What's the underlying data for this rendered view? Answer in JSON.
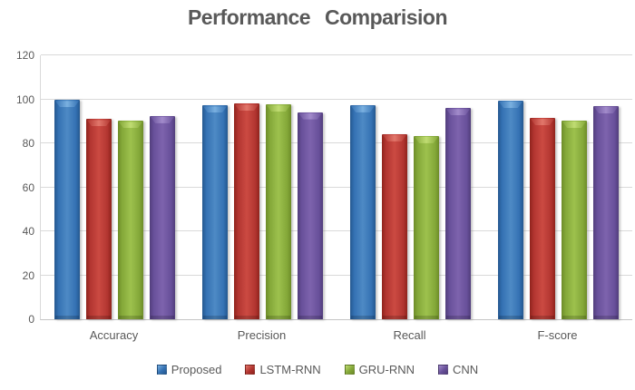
{
  "title": "Performance Comparision",
  "chart_data": {
    "type": "bar",
    "title": "Performance Comparision",
    "categories": [
      "Accuracy",
      "Precision",
      "Recall",
      "F-score"
    ],
    "series": [
      {
        "name": "Proposed",
        "color": "#3471b3",
        "fill": {
          "dark": "#24578f",
          "mid": "#3471b3",
          "light": "#4e8ac5",
          "top": "#7ab0e0"
        },
        "values": [
          99.7,
          97.2,
          97.4,
          99.4
        ]
      },
      {
        "name": "LSTM-RNN",
        "color": "#b23530",
        "fill": {
          "dark": "#8f231c",
          "mid": "#b23530",
          "light": "#cb4a42",
          "top": "#e2776b"
        },
        "values": [
          91.0,
          98.0,
          84.2,
          91.5
        ]
      },
      {
        "name": "GRU-RNN",
        "color": "#84a839",
        "fill": {
          "dark": "#6d8c28",
          "mid": "#84a839",
          "light": "#9dc14d",
          "top": "#c0dc72"
        },
        "values": [
          90.2,
          97.7,
          83.4,
          90.3
        ]
      },
      {
        "name": "CNN",
        "color": "#68509a",
        "fill": {
          "dark": "#523e7c",
          "mid": "#68509a",
          "light": "#7d63ad",
          "top": "#a28bcb"
        },
        "values": [
          92.4,
          94.2,
          96.0,
          96.9
        ]
      }
    ],
    "xlabel": "",
    "ylabel": "",
    "ylim": [
      0,
      120
    ],
    "ytick_step": 20,
    "ytick_labels": [
      "0",
      "20",
      "40",
      "60",
      "80",
      "100",
      "120"
    ],
    "grid": true,
    "legend_position": "bottom"
  },
  "colors": {
    "grid": "#d9d9d9",
    "axis": "#c3c3c3",
    "text": "#595959",
    "background": "#ffffff"
  }
}
